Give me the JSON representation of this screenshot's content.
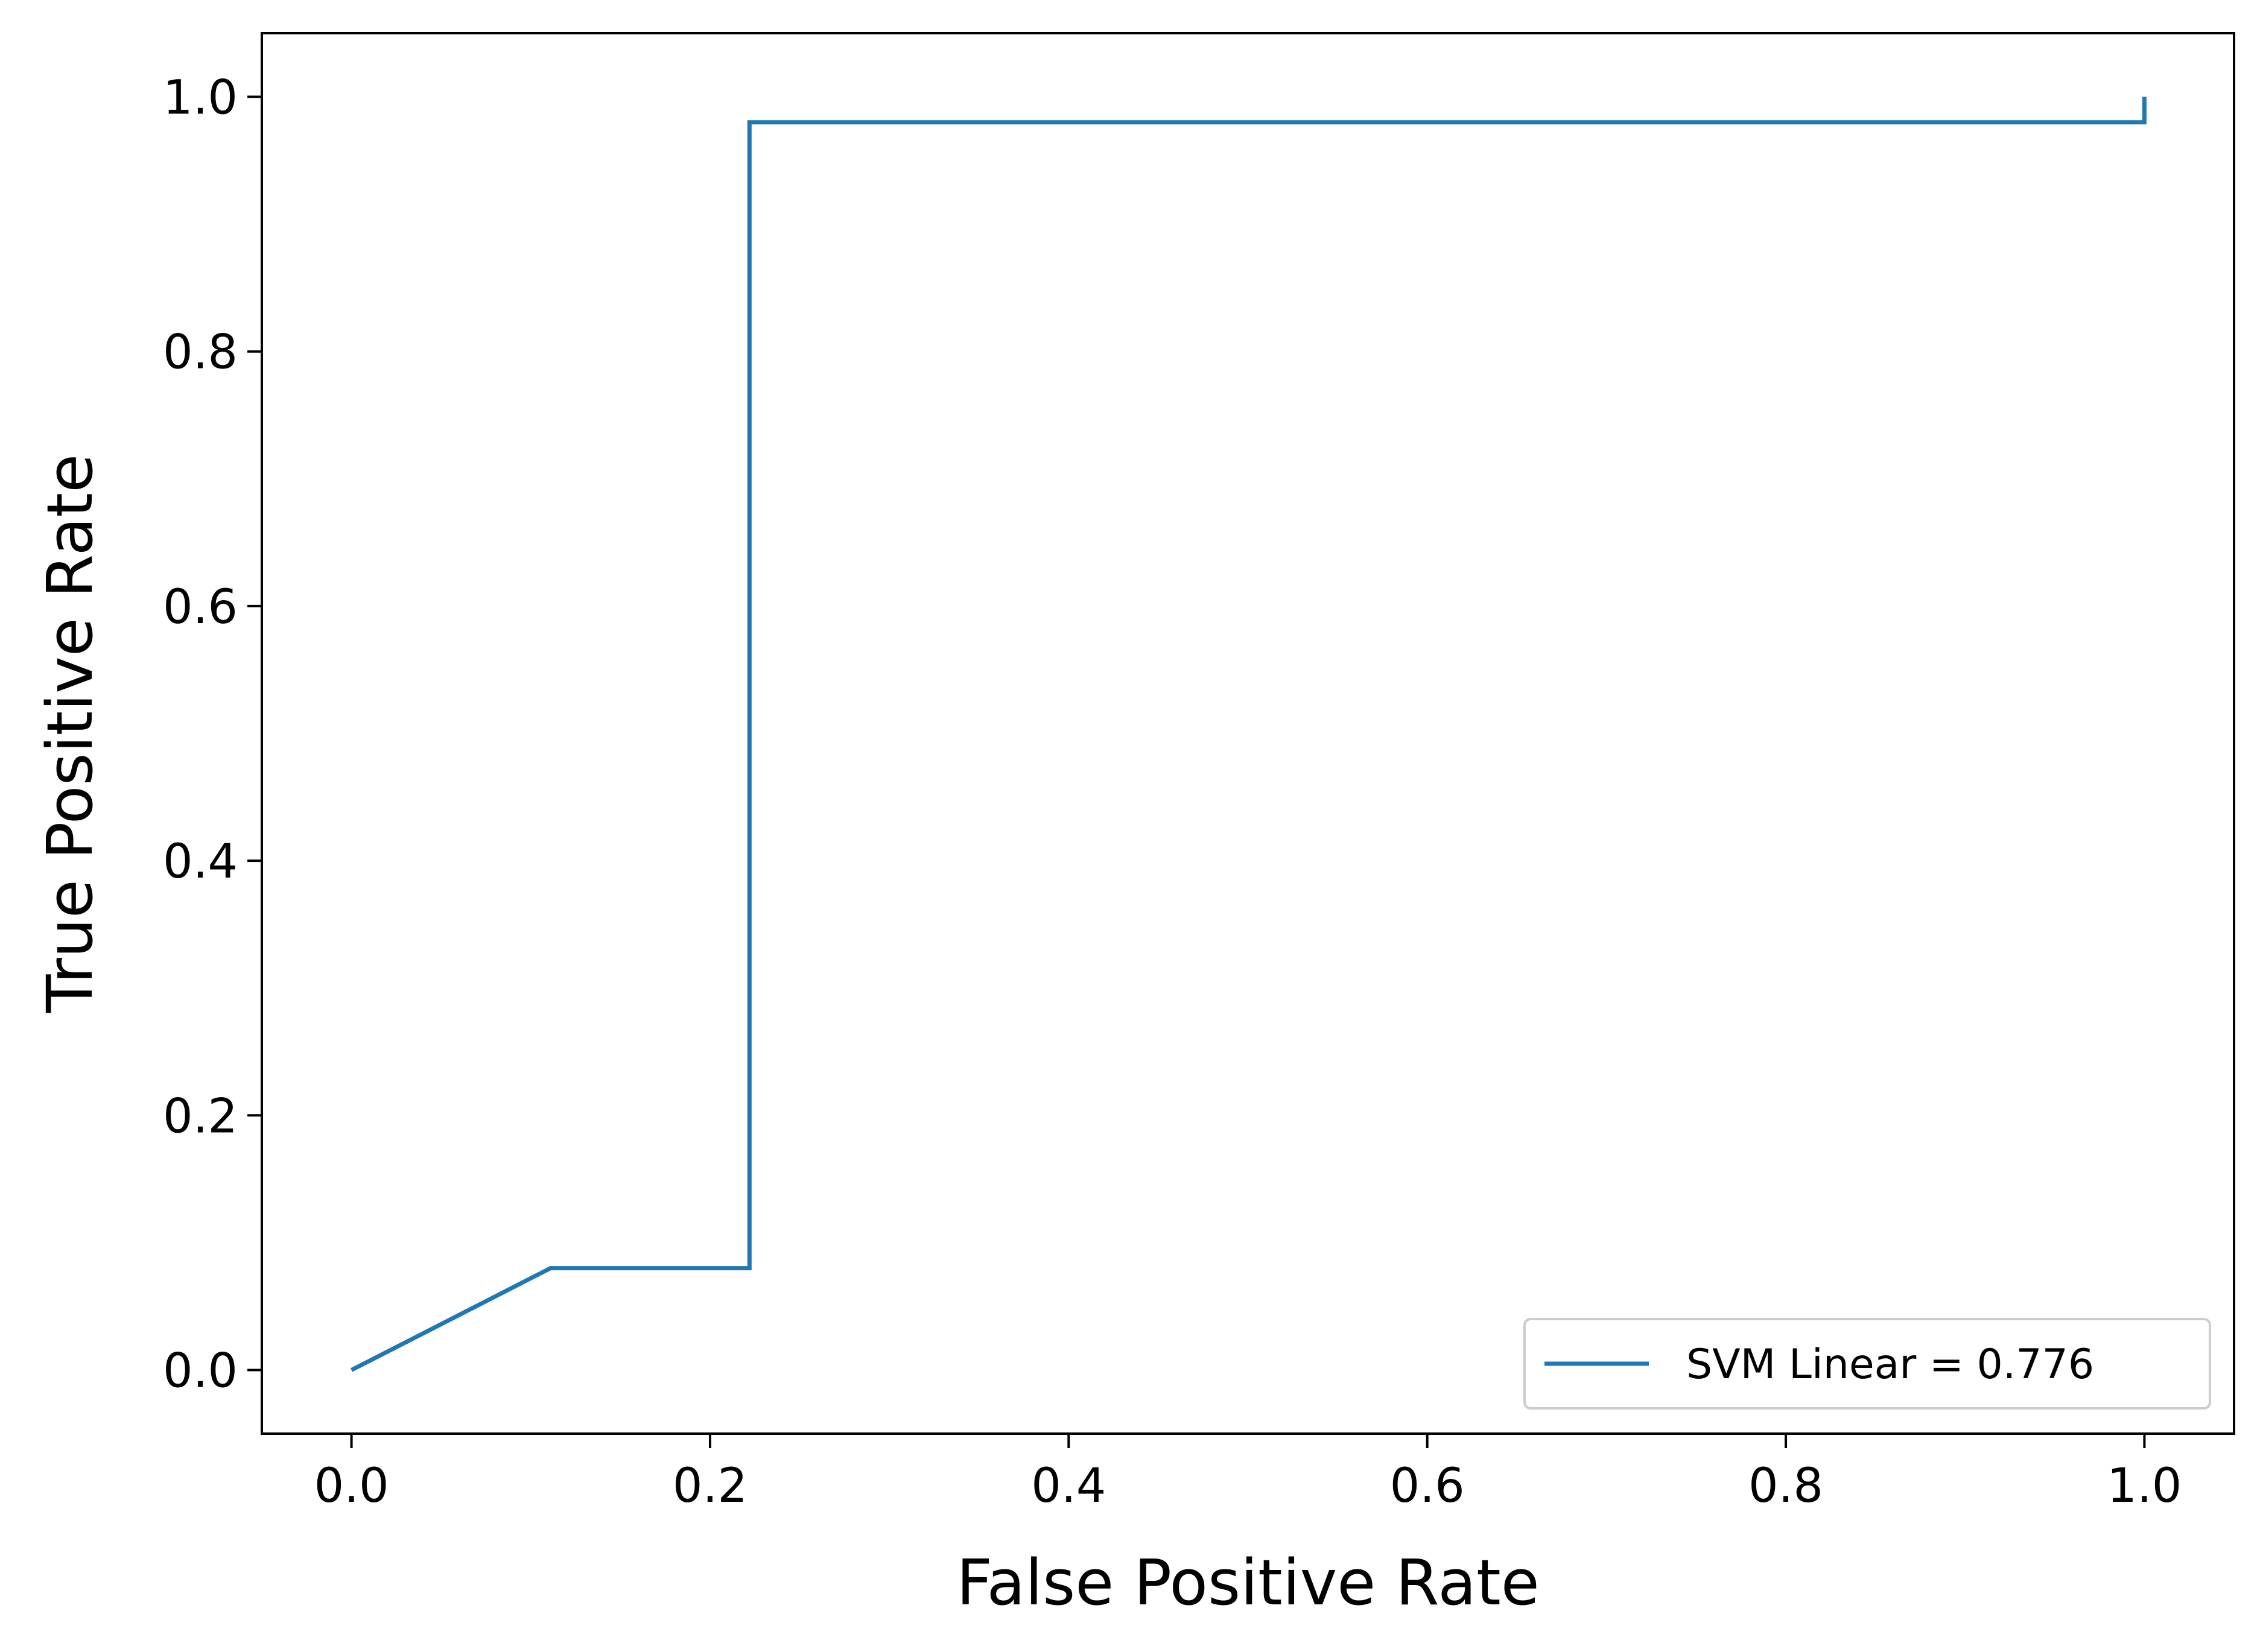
{
  "chart_data": {
    "type": "line",
    "title": "",
    "xlabel": "False Positive Rate",
    "ylabel": "True Positive Rate",
    "xlim": [
      -0.05,
      1.05
    ],
    "ylim": [
      -0.05,
      1.05
    ],
    "x_ticks": [
      0.0,
      0.2,
      0.4,
      0.6,
      0.8,
      1.0
    ],
    "y_ticks": [
      0.0,
      0.2,
      0.4,
      0.6,
      0.8,
      1.0
    ],
    "x_tick_labels": [
      "0.0",
      "0.2",
      "0.4",
      "0.6",
      "0.8",
      "1.0"
    ],
    "y_tick_labels": [
      "0.0",
      "0.2",
      "0.4",
      "0.6",
      "0.8",
      "1.0"
    ],
    "grid": false,
    "legend_position": "bottom-right",
    "series": [
      {
        "name": "SVM Linear = 0.776",
        "color": "#1f77b4",
        "x": [
          0.0,
          0.111,
          0.222,
          0.222,
          1.0,
          1.0
        ],
        "y": [
          0.0,
          0.08,
          0.08,
          0.98,
          0.98,
          1.0
        ]
      }
    ]
  }
}
